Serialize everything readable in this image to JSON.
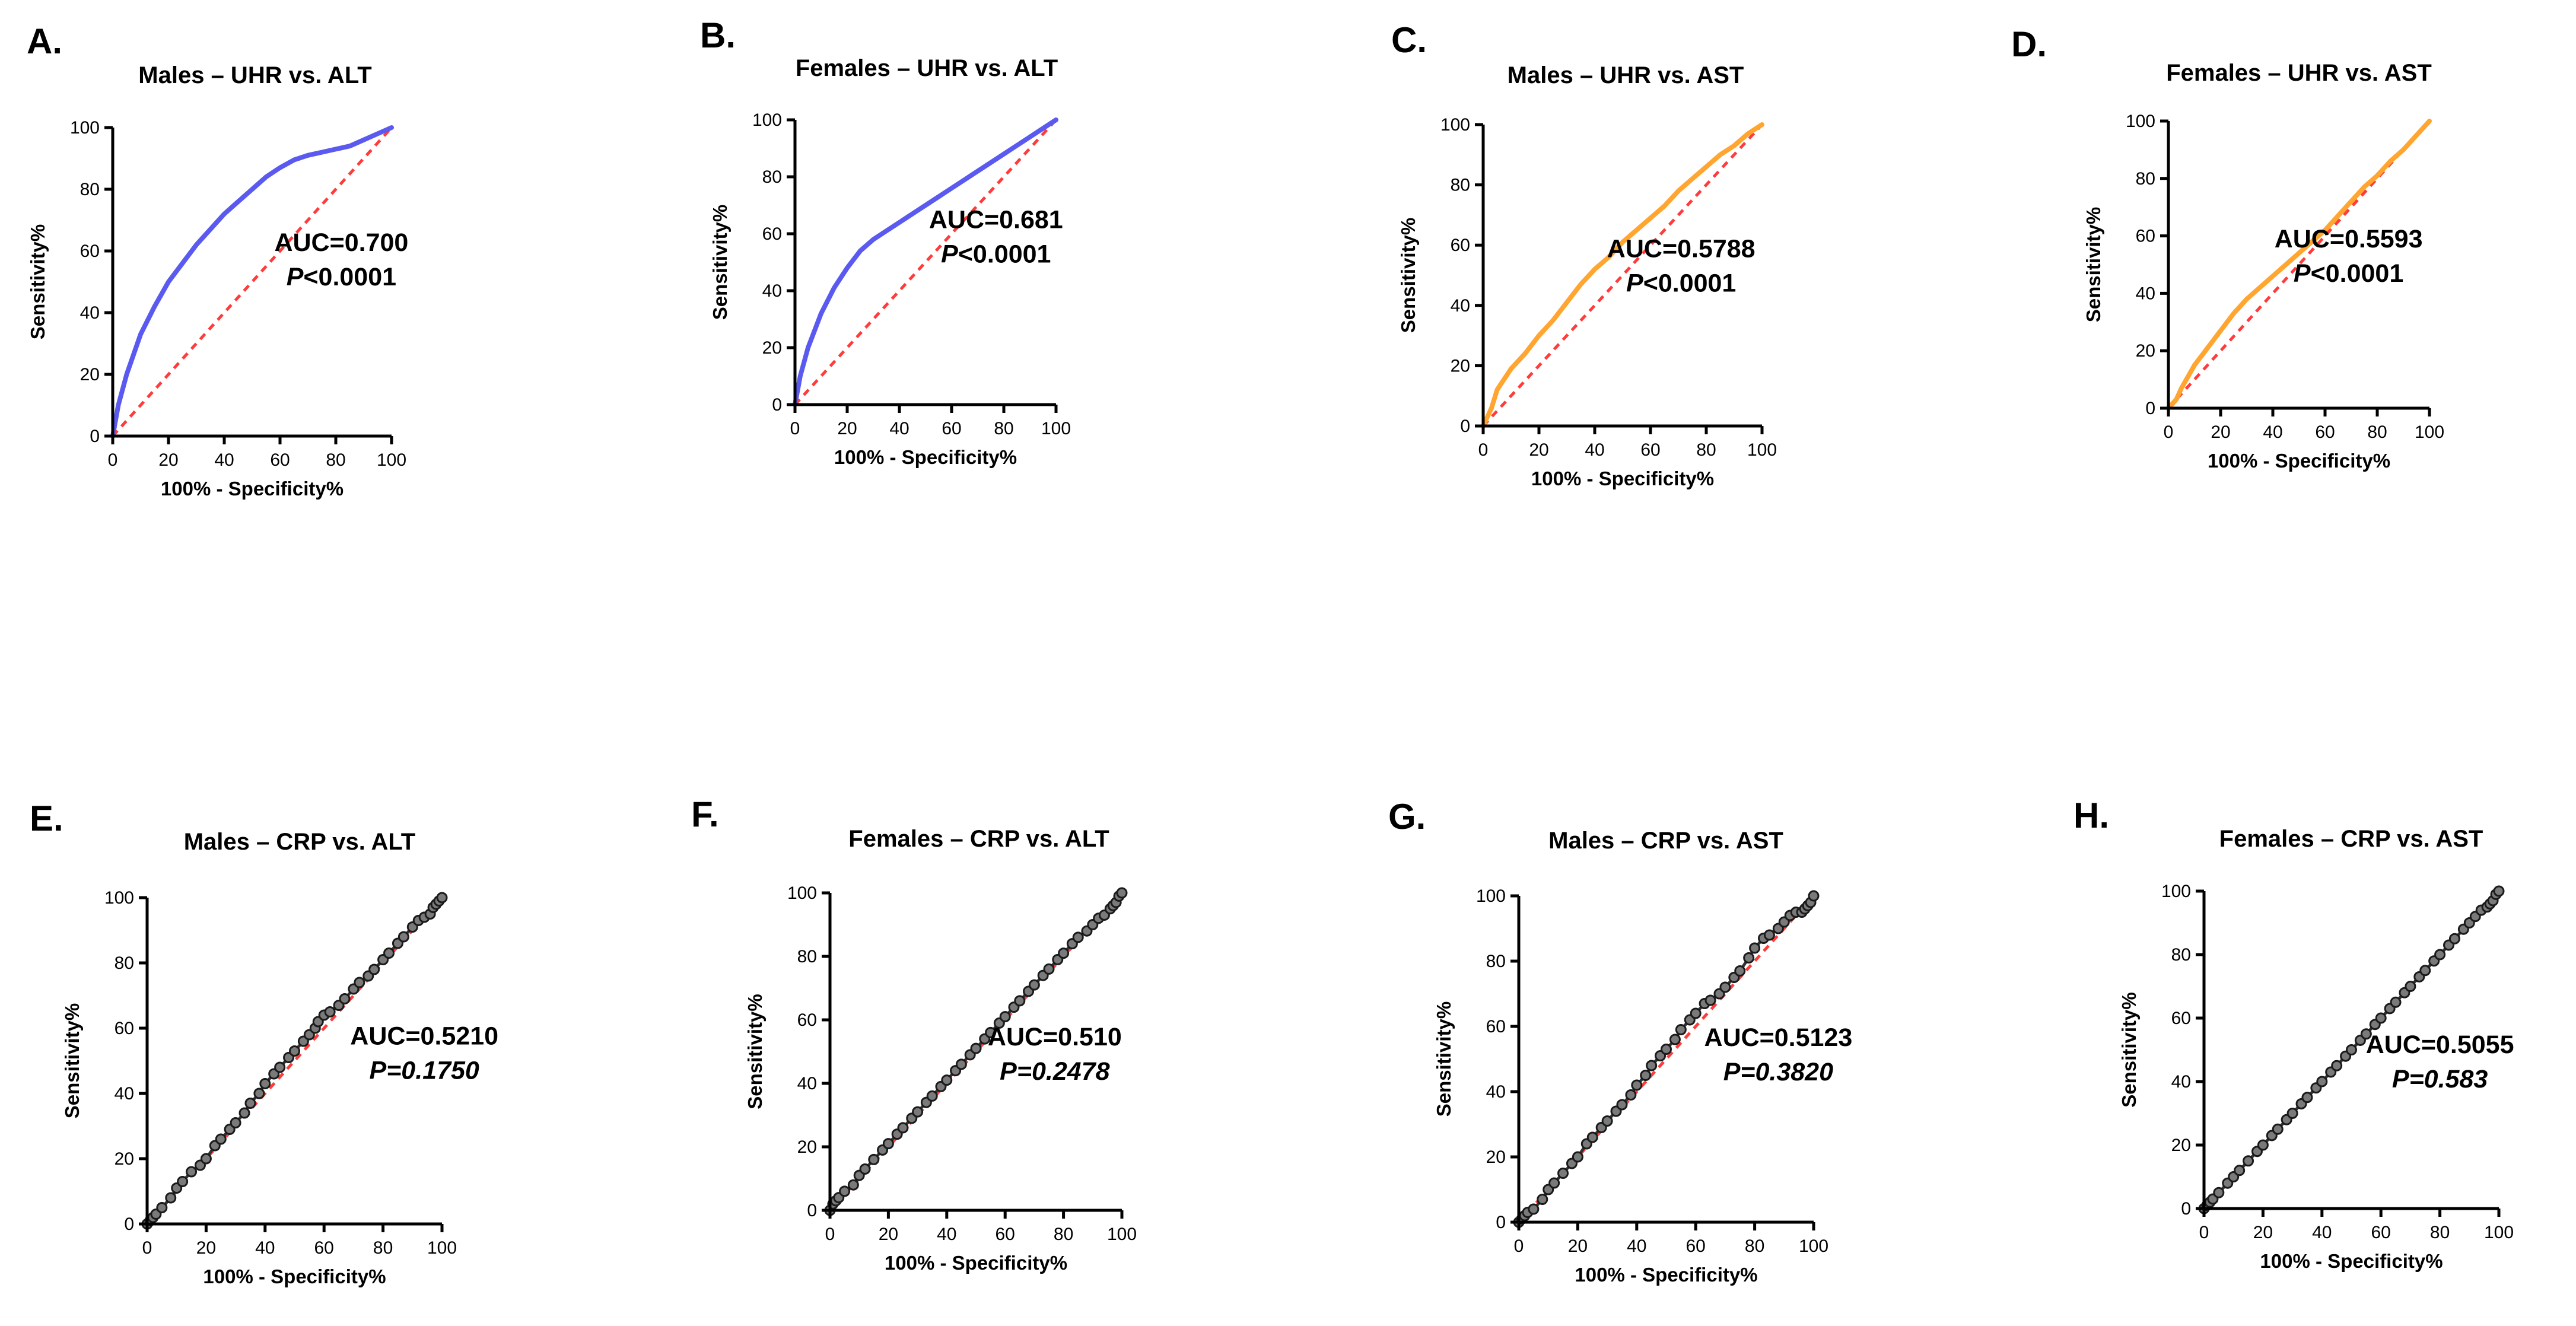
{
  "chart_data": [
    {
      "type": "line",
      "panel_label": "A.",
      "title": "Males – UHR vs. ALT",
      "xlabel": "100% - Specificity%",
      "ylabel": "Sensitivity%",
      "xlim": [
        0,
        100
      ],
      "ylim": [
        0,
        100
      ],
      "xticks": [
        "0",
        "20",
        "40",
        "60",
        "80",
        "100"
      ],
      "yticks": [
        "0",
        "20",
        "40",
        "60",
        "80",
        "100"
      ],
      "annotation": {
        "auc": "AUC=0.700",
        "p_symbol": "P",
        "p_rest": "<0.0001",
        "p_full_italic": false
      },
      "series": [
        {
          "name": "ROC curve",
          "color": "#5a5af0",
          "style": "line",
          "x": [
            0,
            2,
            5,
            10,
            15,
            20,
            25,
            30,
            35,
            40,
            45,
            50,
            55,
            60,
            65,
            70,
            75,
            80,
            85,
            90,
            95,
            100
          ],
          "y": [
            0,
            10,
            20,
            33,
            42,
            50,
            56,
            62,
            67,
            72,
            76,
            80,
            84,
            87,
            89.5,
            91,
            92,
            93,
            94,
            96,
            98,
            100
          ]
        },
        {
          "name": "Reference",
          "color": "#ff3b3b",
          "style": "dashed",
          "x": [
            0,
            100
          ],
          "y": [
            0,
            100
          ]
        }
      ]
    },
    {
      "type": "line",
      "panel_label": "B.",
      "title": "Females – UHR vs. ALT",
      "xlabel": "100% - Specificity%",
      "ylabel": "Sensitivity%",
      "xlim": [
        0,
        100
      ],
      "ylim": [
        0,
        100
      ],
      "xticks": [
        "0",
        "20",
        "40",
        "60",
        "80",
        "100"
      ],
      "yticks": [
        "0",
        "20",
        "40",
        "60",
        "80",
        "100"
      ],
      "annotation": {
        "auc": "AUC=0.681",
        "p_symbol": "P",
        "p_rest": "<0.0001",
        "p_full_italic": false
      },
      "series": [
        {
          "name": "ROC curve",
          "color": "#5a5af0",
          "style": "line",
          "x": [
            0,
            2,
            5,
            10,
            15,
            20,
            25,
            30,
            35,
            40,
            45,
            50,
            55,
            60,
            65,
            70,
            75,
            80,
            85,
            90,
            95,
            100
          ],
          "y": [
            0,
            10,
            20,
            32,
            41,
            48,
            54,
            58,
            61,
            64,
            67,
            70,
            73,
            76,
            79,
            82,
            85,
            88,
            91,
            94,
            97,
            100
          ]
        },
        {
          "name": "Reference",
          "color": "#ff3b3b",
          "style": "dashed",
          "x": [
            0,
            100
          ],
          "y": [
            0,
            100
          ]
        }
      ]
    },
    {
      "type": "line",
      "panel_label": "C.",
      "title": "Males – UHR vs. AST",
      "xlabel": "100% - Specificity%",
      "ylabel": "Sensitivity%",
      "xlim": [
        0,
        100
      ],
      "ylim": [
        0,
        100
      ],
      "xticks": [
        "0",
        "20",
        "40",
        "60",
        "80",
        "100"
      ],
      "yticks": [
        "0",
        "20",
        "40",
        "60",
        "80",
        "100"
      ],
      "annotation": {
        "auc": "AUC=0.5788",
        "p_symbol": "P",
        "p_rest": "<0.0001",
        "p_full_italic": false
      },
      "series": [
        {
          "name": "ROC curve",
          "color": "#ffa530",
          "style": "line",
          "x": [
            0,
            3,
            5,
            10,
            15,
            20,
            25,
            30,
            35,
            40,
            45,
            50,
            55,
            60,
            65,
            70,
            75,
            80,
            85,
            90,
            95,
            100
          ],
          "y": [
            0,
            6,
            12,
            19,
            24,
            30,
            35,
            41,
            47,
            52,
            56,
            61,
            65,
            69,
            73,
            78,
            82,
            86,
            90,
            93,
            97,
            100
          ]
        },
        {
          "name": "Reference",
          "color": "#ff3b3b",
          "style": "dashed",
          "x": [
            0,
            100
          ],
          "y": [
            0,
            100
          ]
        }
      ]
    },
    {
      "type": "line",
      "panel_label": "D.",
      "title": "Females – UHR vs. AST",
      "xlabel": "100% - Specificity%",
      "ylabel": "Sensitivity%",
      "xlim": [
        0,
        100
      ],
      "ylim": [
        0,
        100
      ],
      "xticks": [
        "0",
        "20",
        "40",
        "60",
        "80",
        "100"
      ],
      "yticks": [
        "0",
        "20",
        "40",
        "60",
        "80",
        "100"
      ],
      "annotation": {
        "auc": "AUC=0.5593",
        "p_symbol": "P",
        "p_rest": "<0.0001",
        "p_full_italic": false
      },
      "series": [
        {
          "name": "ROC curve",
          "color": "#ffa530",
          "style": "line",
          "x": [
            0,
            3,
            5,
            10,
            15,
            20,
            25,
            30,
            35,
            40,
            45,
            50,
            55,
            60,
            65,
            70,
            75,
            80,
            85,
            90,
            95,
            100
          ],
          "y": [
            0,
            3,
            7,
            15,
            21,
            27,
            33,
            38,
            42,
            46,
            50,
            54,
            58,
            62,
            67,
            72,
            77,
            81,
            86,
            90,
            95,
            100
          ]
        },
        {
          "name": "Reference",
          "color": "#ff3b3b",
          "style": "dashed",
          "x": [
            0,
            100
          ],
          "y": [
            0,
            100
          ]
        }
      ]
    },
    {
      "type": "scatter",
      "panel_label": "E.",
      "title": "Males – CRP vs. ALT",
      "xlabel": "100% - Specificity%",
      "ylabel": "Sensitivity%",
      "xlim": [
        0,
        100
      ],
      "ylim": [
        0,
        100
      ],
      "xticks": [
        "0",
        "20",
        "40",
        "60",
        "80",
        "100"
      ],
      "yticks": [
        "0",
        "20",
        "40",
        "60",
        "80",
        "100"
      ],
      "annotation": {
        "auc": "AUC=0.5210",
        "p_symbol": "P=0.1750",
        "p_rest": "",
        "p_full_italic": true
      },
      "series": [
        {
          "name": "ROC curve",
          "color": "#333333",
          "style": "markers",
          "x": [
            0,
            1,
            2,
            3,
            5,
            8,
            10,
            12,
            15,
            18,
            20,
            23,
            25,
            28,
            30,
            33,
            35,
            38,
            40,
            43,
            45,
            48,
            50,
            53,
            55,
            57,
            58,
            60,
            62,
            65,
            67,
            70,
            72,
            75,
            77,
            80,
            82,
            85,
            87,
            90,
            92,
            94,
            96,
            97,
            98,
            99,
            100
          ],
          "y": [
            0,
            1,
            2,
            3,
            5,
            8,
            11,
            13,
            16,
            18,
            20,
            24,
            26,
            29,
            31,
            34,
            37,
            40,
            43,
            46,
            48,
            51,
            53,
            56,
            58,
            60,
            62,
            64,
            65,
            67,
            69,
            72,
            74,
            76,
            78,
            81,
            83,
            86,
            88,
            91,
            93,
            94,
            95,
            97,
            98,
            99,
            100
          ]
        },
        {
          "name": "Reference",
          "color": "#ff3b3b",
          "style": "dashed",
          "x": [
            0,
            100
          ],
          "y": [
            0,
            100
          ]
        }
      ]
    },
    {
      "type": "scatter",
      "panel_label": "F.",
      "title": "Females – CRP vs. ALT",
      "xlabel": "100% - Specificity%",
      "ylabel": "Sensitivity%",
      "xlim": [
        0,
        100
      ],
      "ylim": [
        0,
        100
      ],
      "xticks": [
        "0",
        "20",
        "40",
        "60",
        "80",
        "100"
      ],
      "yticks": [
        "0",
        "20",
        "40",
        "60",
        "80",
        "100"
      ],
      "annotation": {
        "auc": "AUC=0.510",
        "p_symbol": "P=0.2478",
        "p_rest": "",
        "p_full_italic": true
      },
      "series": [
        {
          "name": "ROC curve",
          "color": "#333333",
          "style": "markers",
          "x": [
            0,
            1,
            2,
            3,
            5,
            8,
            10,
            12,
            15,
            18,
            20,
            23,
            25,
            28,
            30,
            33,
            35,
            38,
            40,
            43,
            45,
            48,
            50,
            53,
            55,
            58,
            60,
            63,
            65,
            68,
            70,
            73,
            75,
            78,
            80,
            83,
            85,
            88,
            90,
            92,
            94,
            96,
            97,
            98,
            99,
            100
          ],
          "y": [
            0,
            2,
            3,
            4,
            6,
            8,
            11,
            13,
            16,
            19,
            21,
            24,
            26,
            29,
            31,
            34,
            36,
            39,
            41,
            44,
            46,
            49,
            51,
            54,
            56,
            59,
            61,
            64,
            66,
            69,
            71,
            74,
            76,
            79,
            81,
            84,
            86,
            88,
            90,
            92,
            93,
            95,
            96,
            97,
            99,
            100
          ]
        },
        {
          "name": "Reference",
          "color": "#ff3b3b",
          "style": "dashed",
          "x": [
            0,
            100
          ],
          "y": [
            0,
            100
          ]
        }
      ]
    },
    {
      "type": "scatter",
      "panel_label": "G.",
      "title": "Males – CRP vs. AST",
      "xlabel": "100% - Specificity%",
      "ylabel": "Sensitivity%",
      "xlim": [
        0,
        100
      ],
      "ylim": [
        0,
        100
      ],
      "xticks": [
        "0",
        "20",
        "40",
        "60",
        "80",
        "100"
      ],
      "yticks": [
        "0",
        "20",
        "40",
        "60",
        "80",
        "100"
      ],
      "annotation": {
        "auc": "AUC=0.5123",
        "p_symbol": "P=0.3820",
        "p_rest": "",
        "p_full_italic": true
      },
      "series": [
        {
          "name": "ROC curve",
          "color": "#333333",
          "style": "markers",
          "x": [
            0,
            1,
            2,
            3,
            5,
            8,
            10,
            12,
            15,
            18,
            20,
            23,
            25,
            28,
            30,
            33,
            35,
            38,
            40,
            43,
            45,
            48,
            50,
            53,
            55,
            58,
            60,
            63,
            65,
            68,
            70,
            73,
            75,
            78,
            80,
            83,
            85,
            88,
            90,
            92,
            94,
            96,
            97,
            98,
            99,
            100
          ],
          "y": [
            0,
            1,
            2,
            3,
            4,
            7,
            10,
            12,
            15,
            18,
            20,
            24,
            26,
            29,
            31,
            34,
            36,
            39,
            42,
            45,
            48,
            51,
            53,
            56,
            59,
            62,
            64,
            67,
            68,
            70,
            72,
            75,
            77,
            81,
            84,
            87,
            88,
            90,
            92,
            94,
            95,
            95,
            96,
            97,
            98,
            100
          ]
        },
        {
          "name": "Reference",
          "color": "#ff3b3b",
          "style": "dashed",
          "x": [
            0,
            100
          ],
          "y": [
            0,
            100
          ]
        }
      ]
    },
    {
      "type": "scatter",
      "panel_label": "H.",
      "title": "Females – CRP vs. AST",
      "xlabel": "100% - Specificity%",
      "ylabel": "Sensitivity%",
      "xlim": [
        0,
        100
      ],
      "ylim": [
        0,
        100
      ],
      "xticks": [
        "0",
        "20",
        "40",
        "60",
        "80",
        "100"
      ],
      "yticks": [
        "0",
        "20",
        "40",
        "60",
        "80",
        "100"
      ],
      "annotation": {
        "auc": "AUC=0.5055",
        "p_symbol": "P=0.583",
        "p_rest": "",
        "p_full_italic": true
      },
      "series": [
        {
          "name": "ROC curve",
          "color": "#333333",
          "style": "markers",
          "x": [
            0,
            1,
            2,
            3,
            5,
            8,
            10,
            12,
            15,
            18,
            20,
            23,
            25,
            28,
            30,
            33,
            35,
            38,
            40,
            43,
            45,
            48,
            50,
            53,
            55,
            58,
            60,
            63,
            65,
            68,
            70,
            73,
            75,
            78,
            80,
            83,
            85,
            88,
            90,
            92,
            94,
            96,
            97,
            98,
            99,
            100
          ],
          "y": [
            0,
            1,
            2,
            3,
            5,
            8,
            10,
            12,
            15,
            18,
            20,
            23,
            25,
            28,
            30,
            33,
            35,
            38,
            40,
            43,
            45,
            48,
            50,
            53,
            55,
            58,
            60,
            63,
            65,
            68,
            70,
            73,
            75,
            78,
            80,
            83,
            85,
            88,
            90,
            92,
            94,
            95,
            96,
            97,
            99,
            100
          ]
        },
        {
          "name": "Reference",
          "color": "#ff3b3b",
          "style": "dashed",
          "x": [
            0,
            100
          ],
          "y": [
            0,
            100
          ]
        }
      ]
    }
  ]
}
